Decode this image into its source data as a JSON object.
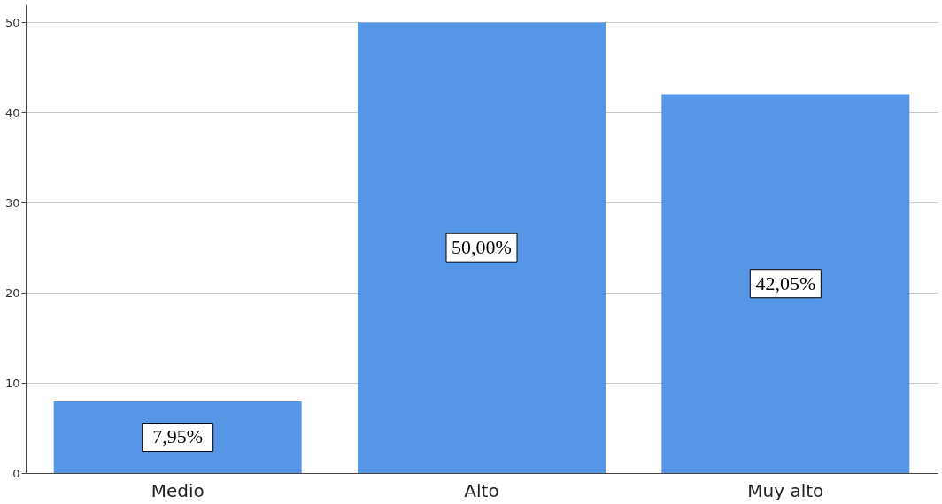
{
  "chart_data": {
    "type": "bar",
    "categories": [
      "Medio",
      "Alto",
      "Muy alto"
    ],
    "values": [
      7.95,
      50,
      42.05
    ],
    "color": "#5596e6",
    "value_labels": [
      "7,95%",
      "50,00%",
      "42,05%"
    ],
    "ylim": [
      0,
      52
    ],
    "yticks": [
      0,
      10,
      20,
      30,
      40,
      50
    ],
    "grid": "y"
  }
}
